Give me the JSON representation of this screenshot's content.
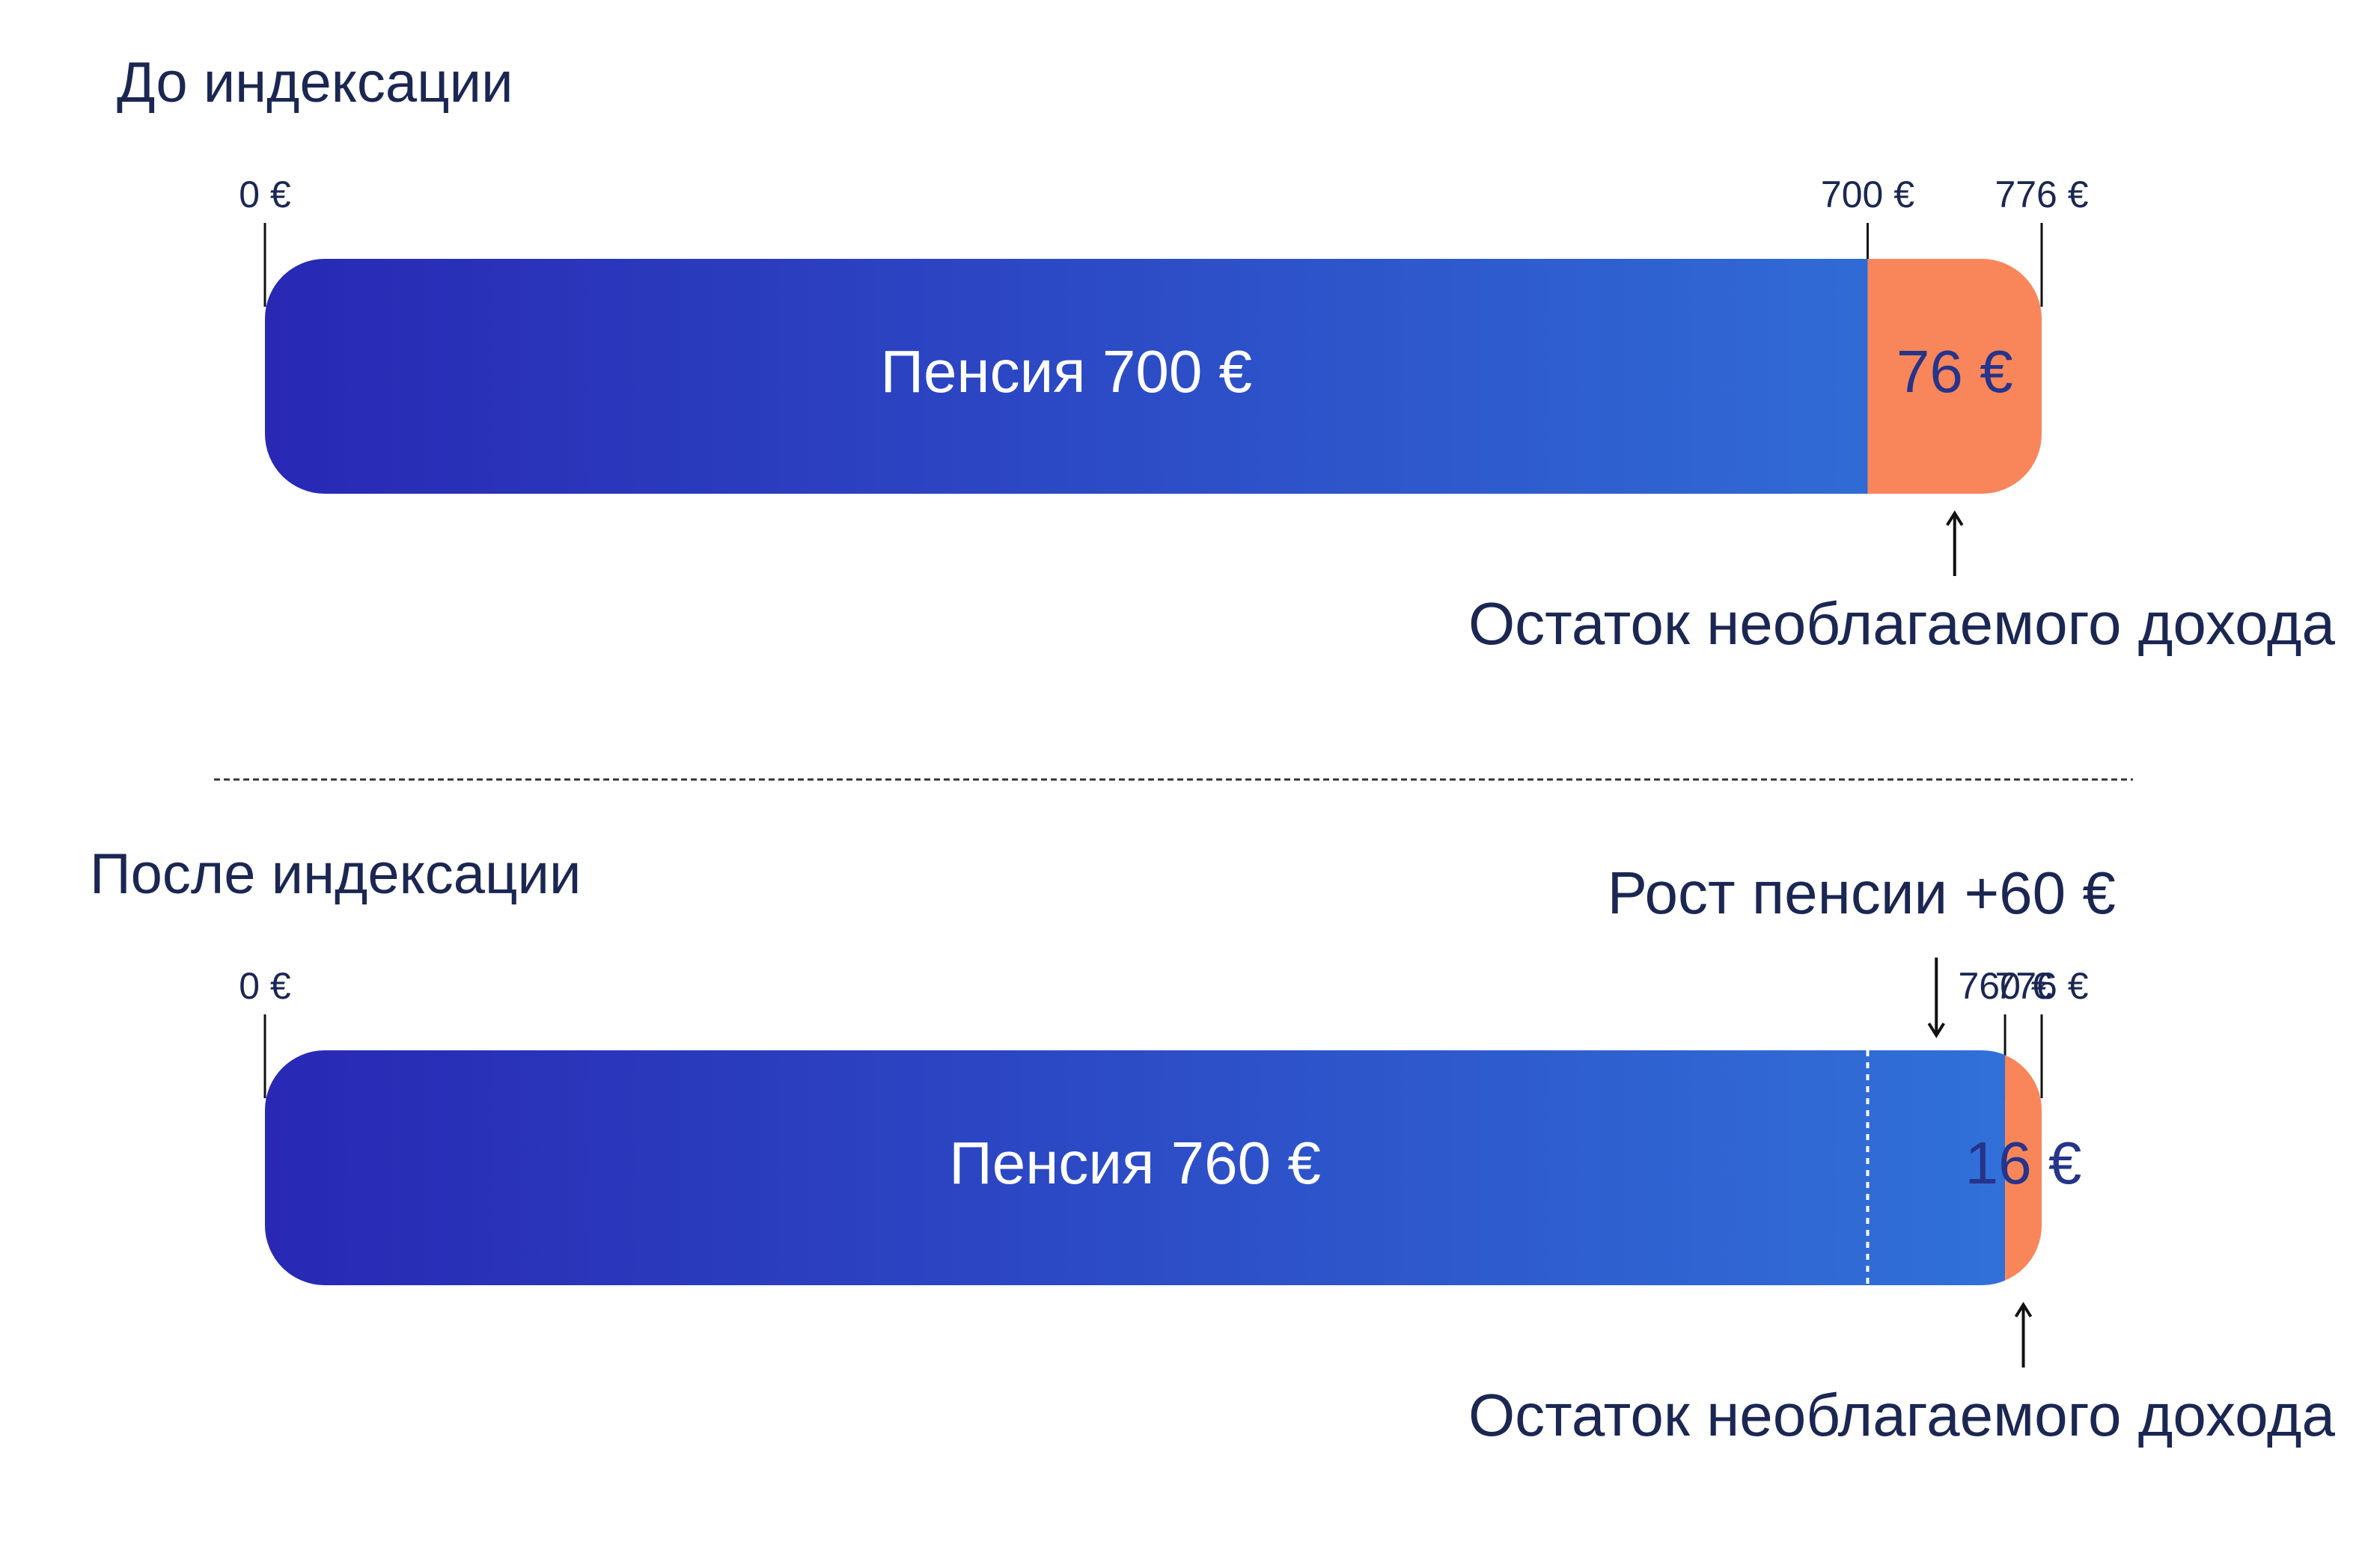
{
  "chart_data": [
    {
      "type": "bar",
      "orientation": "horizontal",
      "stacked": true,
      "title": "До индексации",
      "values": [
        700,
        76
      ],
      "value_labels": [
        "Пенсия 700 €",
        "76 €"
      ],
      "colors": [
        [
          "#2828b4",
          "#3172d9"
        ],
        "#f9865a"
      ],
      "label_colors": [
        "#ffffff",
        "#26348a"
      ],
      "xlim": [
        0,
        776
      ],
      "xticks": [
        {
          "value": 0,
          "label": "0 €"
        },
        {
          "value": 700,
          "label": "700 €"
        },
        {
          "value": 776,
          "label": "776 €"
        }
      ],
      "annotations": [
        {
          "text": "Остаток необлагаемого дохода",
          "segment": 1,
          "position": "below"
        }
      ]
    },
    {
      "type": "bar",
      "orientation": "horizontal",
      "stacked": true,
      "title": "После индексации",
      "values": [
        760,
        16
      ],
      "value_labels": [
        "Пенсия 760 €",
        "16 €"
      ],
      "colors": [
        [
          "#2828b4",
          "#3172d9"
        ],
        "#f9865a"
      ],
      "label_colors": [
        "#ffffff",
        "#26348a"
      ],
      "reference_line": 700,
      "xlim": [
        0,
        776
      ],
      "xticks": [
        {
          "value": 0,
          "label": "0 €"
        },
        {
          "value": 760,
          "label": "760 €"
        },
        {
          "value": 776,
          "label": "776 €"
        }
      ],
      "annotations": [
        {
          "text": "Рост пенсии +60 €",
          "segment": 0,
          "position": "above"
        },
        {
          "text": "Остаток необлагаемого дохода",
          "segment": 1,
          "position": "below"
        }
      ]
    }
  ]
}
